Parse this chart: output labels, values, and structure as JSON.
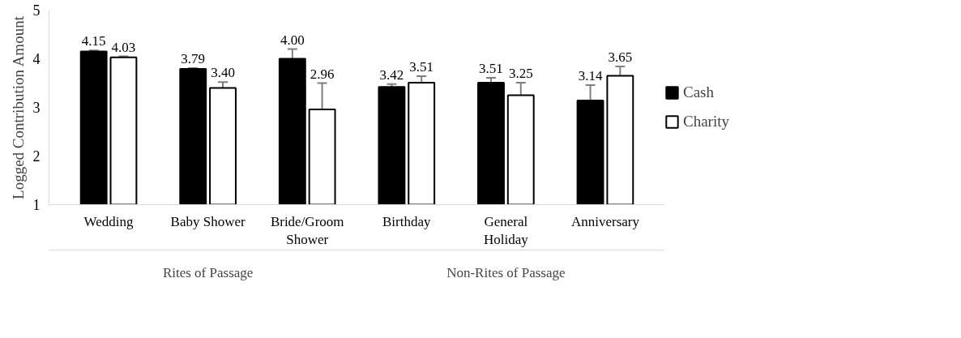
{
  "chart_data": {
    "type": "bar",
    "ylabel": "Logged Contribution Amount",
    "categories": [
      "Wedding",
      "Baby Shower",
      "Bride/Groom Shower",
      "Birthday",
      "General Holiday",
      "Anniversary"
    ],
    "series": [
      {
        "name": "Cash",
        "color": "#000000",
        "values": [
          4.15,
          3.79,
          4.0,
          3.42,
          3.51,
          3.14
        ],
        "errors": [
          0.02,
          0.02,
          0.2,
          0.06,
          0.1,
          0.32
        ],
        "value_labels": [
          "4.15",
          "3.79",
          "4.00",
          "3.42",
          "3.51",
          "3.14"
        ]
      },
      {
        "name": "Charity",
        "color": "#ffffff",
        "values": [
          4.03,
          3.4,
          2.96,
          3.51,
          3.25,
          3.65
        ],
        "errors": [
          0.02,
          0.12,
          0.54,
          0.13,
          0.26,
          0.19
        ],
        "value_labels": [
          "4.03",
          "3.40",
          "2.96",
          "3.51",
          "3.25",
          "3.65"
        ]
      }
    ],
    "annotations": [
      "Rites of Passage",
      "Non-Rites of Passage"
    ],
    "ylim": [
      1,
      5
    ],
    "yticks": [
      1,
      2,
      3,
      4,
      5
    ],
    "grid": false,
    "legend": "right"
  }
}
